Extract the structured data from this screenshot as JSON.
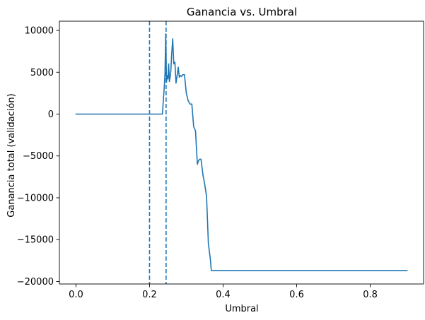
{
  "chart_data": {
    "type": "line",
    "title": "Ganancia vs. Umbral",
    "xlabel": "Umbral",
    "ylabel": "Ganancia total (validación)",
    "xlim": [
      -0.045,
      0.945
    ],
    "ylim": [
      -20300,
      11100
    ],
    "xticks": [
      0.0,
      0.2,
      0.4,
      0.6,
      0.8
    ],
    "xtick_labels": [
      "0.0",
      "0.2",
      "0.4",
      "0.6",
      "0.8"
    ],
    "yticks": [
      10000,
      5000,
      0,
      -5000,
      -10000,
      -15000,
      -20000
    ],
    "ytick_labels": [
      "10000",
      "5000",
      "0",
      "−5000",
      "−10000",
      "−15000",
      "−20000"
    ],
    "grid": false,
    "legend": "none",
    "line_color": "#1f77b4",
    "vlines": [
      {
        "x": 0.2,
        "style": "dashed",
        "color": "#1f77b4"
      },
      {
        "x": 0.245,
        "style": "dashed",
        "color": "#1f77b4"
      }
    ],
    "series": [
      {
        "color": "#1f77b4",
        "x": [
          0.0,
          0.05,
          0.1,
          0.15,
          0.2,
          0.235,
          0.24,
          0.242,
          0.244,
          0.246,
          0.248,
          0.25,
          0.252,
          0.254,
          0.256,
          0.258,
          0.26,
          0.263,
          0.266,
          0.269,
          0.272,
          0.275,
          0.278,
          0.281,
          0.284,
          0.287,
          0.29,
          0.295,
          0.3,
          0.305,
          0.31,
          0.315,
          0.32,
          0.325,
          0.33,
          0.333,
          0.336,
          0.34,
          0.345,
          0.35,
          0.355,
          0.36,
          0.365,
          0.368,
          0.372,
          0.38,
          0.4,
          0.5,
          0.6,
          0.7,
          0.8,
          0.9
        ],
        "y": [
          0,
          0,
          0,
          0,
          0,
          0,
          3200,
          4800,
          9600,
          3800,
          4600,
          4200,
          6000,
          3900,
          4400,
          5200,
          7000,
          9000,
          6000,
          6200,
          3700,
          4600,
          5600,
          4400,
          4600,
          4500,
          4700,
          4700,
          2500,
          1600,
          1200,
          1200,
          -1500,
          -2000,
          -6000,
          -5600,
          -5400,
          -5400,
          -7200,
          -8400,
          -9800,
          -15500,
          -17200,
          -18700,
          -18700,
          -18700,
          -18700,
          -18700,
          -18700,
          -18700,
          -18700,
          -18700
        ]
      }
    ]
  }
}
